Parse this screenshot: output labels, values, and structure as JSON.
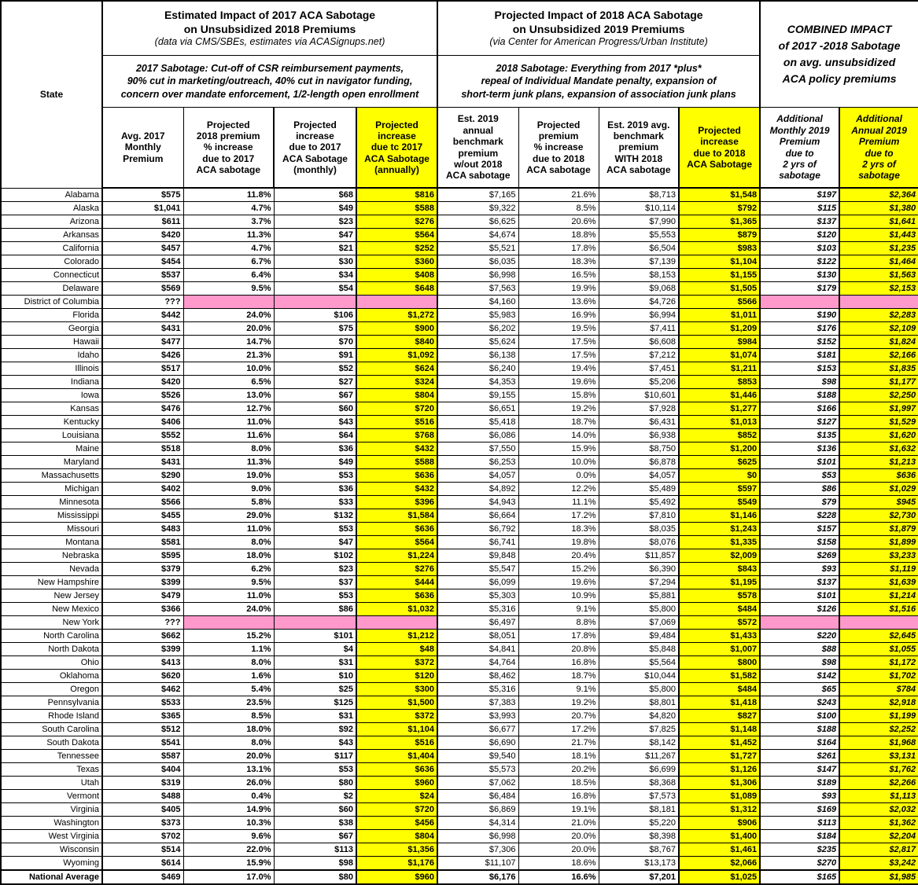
{
  "colors": {
    "highlight_yellow": "#FFFF00",
    "missing_pink": "#FF99CC",
    "text": "#000000"
  },
  "chart_data": {
    "type": "table",
    "header": {
      "state_label": "State",
      "group1": {
        "title": "Estimated Impact of 2017 ACA Sabotage\non Unsubsidized 2018 Premiums",
        "source": "(data via CMS/SBEs, estimates via ACASignups.net)",
        "description": "2017 Sabotage: Cut-off of CSR reimbursement payments,\n90% cut in marketing/outreach, 40% cut in navigator funding,\nconcern over mandate enforcement, 1/2-length open enrollment"
      },
      "group2": {
        "title": "Projected Impact of 2018 ACA Sabotage\non Unsubsidized 2019 Premiums",
        "source": "(via Center for American Progress/Urban Institute)",
        "description": "2018 Sabotage: Everything from 2017 *plus*\nrepeal of Individual Mandate penalty, expansion of\nshort-term junk plans, expansion of association junk plans"
      },
      "group3": {
        "title": "COMBINED IMPACT\nof 2017 -2018 Sabotage\non avg. unsubsidized\nACA policy premiums"
      }
    },
    "columns": [
      {
        "label": "Avg. 2017\nMonthly\nPremium",
        "highlight": false,
        "italic": false
      },
      {
        "label": "Projected\n2018 premium\n% increase\ndue to 2017\nACA sabotage",
        "highlight": false,
        "italic": false
      },
      {
        "label": "Projected\nincrease\ndue to 2017\nACA Sabotage\n(monthly)",
        "highlight": false,
        "italic": false
      },
      {
        "label": "Projected\nincrease\ndue tc 2017\nACA Sabotage\n(annually)",
        "highlight": true,
        "italic": false
      },
      {
        "label": "Est. 2019\nannual\nbenchmark\npremium\nw/out 2018\nACA sabotage",
        "highlight": false,
        "italic": false
      },
      {
        "label": "Projected\npremium\n% increase\ndue to 2018\nACA sabotage",
        "highlight": false,
        "italic": false
      },
      {
        "label": "Est. 2019 avg.\nbenchmark\npremium\nWITH 2018\nACA sabotage",
        "highlight": false,
        "italic": false
      },
      {
        "label": "Projected\nincrease\ndue to 2018\nACA Sabotage",
        "highlight": true,
        "italic": false
      },
      {
        "label": "Additional\nMonthly 2019\nPremium\ndue to\n2 yrs of\nsabotage",
        "highlight": false,
        "italic": true
      },
      {
        "label": "Additional\nAnnual 2019\nPremium\ndue to\n2 yrs of\nsabotage",
        "highlight": true,
        "italic": true
      }
    ],
    "rows": [
      {
        "state": "Alabama",
        "cells": [
          "$575",
          "11.8%",
          "$68",
          "$816",
          "$7,165",
          "21.6%",
          "$8,713",
          "$1,548",
          "$197",
          "$2,364"
        ]
      },
      {
        "state": "Alaska",
        "cells": [
          "$1,041",
          "4.7%",
          "$49",
          "$588",
          "$9,322",
          "8.5%",
          "$10,114",
          "$792",
          "$115",
          "$1,380"
        ]
      },
      {
        "state": "Arizona",
        "cells": [
          "$611",
          "3.7%",
          "$23",
          "$276",
          "$6,625",
          "20.6%",
          "$7,990",
          "$1,365",
          "$137",
          "$1,641"
        ]
      },
      {
        "state": "Arkansas",
        "cells": [
          "$420",
          "11.3%",
          "$47",
          "$564",
          "$4,674",
          "18.8%",
          "$5,553",
          "$879",
          "$120",
          "$1,443"
        ]
      },
      {
        "state": "California",
        "cells": [
          "$457",
          "4.7%",
          "$21",
          "$252",
          "$5,521",
          "17.8%",
          "$6,504",
          "$983",
          "$103",
          "$1,235"
        ]
      },
      {
        "state": "Colorado",
        "cells": [
          "$454",
          "6.7%",
          "$30",
          "$360",
          "$6,035",
          "18.3%",
          "$7,139",
          "$1,104",
          "$122",
          "$1,464"
        ]
      },
      {
        "state": "Connecticut",
        "cells": [
          "$537",
          "6.4%",
          "$34",
          "$408",
          "$6,998",
          "16.5%",
          "$8,153",
          "$1,155",
          "$130",
          "$1,563"
        ]
      },
      {
        "state": "Delaware",
        "cells": [
          "$569",
          "9.5%",
          "$54",
          "$648",
          "$7,563",
          "19.9%",
          "$9,068",
          "$1,505",
          "$179",
          "$2,153"
        ]
      },
      {
        "state": "District of Columbia",
        "cells": [
          "???",
          null,
          null,
          null,
          "$4,160",
          "13.6%",
          "$4,726",
          "$566",
          null,
          null
        ]
      },
      {
        "state": "Florida",
        "cells": [
          "$442",
          "24.0%",
          "$106",
          "$1,272",
          "$5,983",
          "16.9%",
          "$6,994",
          "$1,011",
          "$190",
          "$2,283"
        ]
      },
      {
        "state": "Georgia",
        "cells": [
          "$431",
          "20.0%",
          "$75",
          "$900",
          "$6,202",
          "19.5%",
          "$7,411",
          "$1,209",
          "$176",
          "$2,109"
        ]
      },
      {
        "state": "Hawaii",
        "cells": [
          "$477",
          "14.7%",
          "$70",
          "$840",
          "$5,624",
          "17.5%",
          "$6,608",
          "$984",
          "$152",
          "$1,824"
        ]
      },
      {
        "state": "Idaho",
        "cells": [
          "$426",
          "21.3%",
          "$91",
          "$1,092",
          "$6,138",
          "17.5%",
          "$7,212",
          "$1,074",
          "$181",
          "$2,166"
        ]
      },
      {
        "state": "Illinois",
        "cells": [
          "$517",
          "10.0%",
          "$52",
          "$624",
          "$6,240",
          "19.4%",
          "$7,451",
          "$1,211",
          "$153",
          "$1,835"
        ]
      },
      {
        "state": "Indiana",
        "cells": [
          "$420",
          "6.5%",
          "$27",
          "$324",
          "$4,353",
          "19.6%",
          "$5,206",
          "$853",
          "$98",
          "$1,177"
        ]
      },
      {
        "state": "Iowa",
        "cells": [
          "$526",
          "13.0%",
          "$67",
          "$804",
          "$9,155",
          "15.8%",
          "$10,601",
          "$1,446",
          "$188",
          "$2,250"
        ]
      },
      {
        "state": "Kansas",
        "cells": [
          "$476",
          "12.7%",
          "$60",
          "$720",
          "$6,651",
          "19.2%",
          "$7,928",
          "$1,277",
          "$166",
          "$1,997"
        ]
      },
      {
        "state": "Kentucky",
        "cells": [
          "$406",
          "11.0%",
          "$43",
          "$516",
          "$5,418",
          "18.7%",
          "$6,431",
          "$1,013",
          "$127",
          "$1,529"
        ]
      },
      {
        "state": "Louisiana",
        "cells": [
          "$552",
          "11.6%",
          "$64",
          "$768",
          "$6,086",
          "14.0%",
          "$6,938",
          "$852",
          "$135",
          "$1,620"
        ]
      },
      {
        "state": "Maine",
        "cells": [
          "$518",
          "8.0%",
          "$36",
          "$432",
          "$7,550",
          "15.9%",
          "$8,750",
          "$1,200",
          "$136",
          "$1,632"
        ]
      },
      {
        "state": "Maryland",
        "cells": [
          "$431",
          "11.3%",
          "$49",
          "$588",
          "$6,253",
          "10.0%",
          "$6,878",
          "$625",
          "$101",
          "$1,213"
        ]
      },
      {
        "state": "Massachusetts",
        "cells": [
          "$290",
          "19.0%",
          "$53",
          "$636",
          "$4,057",
          "0.0%",
          "$4,057",
          "$0",
          "$53",
          "$636"
        ]
      },
      {
        "state": "Michigan",
        "cells": [
          "$402",
          "9.0%",
          "$36",
          "$432",
          "$4,892",
          "12.2%",
          "$5,489",
          "$597",
          "$86",
          "$1,029"
        ]
      },
      {
        "state": "Minnesota",
        "cells": [
          "$566",
          "5.8%",
          "$33",
          "$396",
          "$4,943",
          "11.1%",
          "$5,492",
          "$549",
          "$79",
          "$945"
        ]
      },
      {
        "state": "Mississippi",
        "cells": [
          "$455",
          "29.0%",
          "$132",
          "$1,584",
          "$6,664",
          "17.2%",
          "$7,810",
          "$1,146",
          "$228",
          "$2,730"
        ]
      },
      {
        "state": "Missouri",
        "cells": [
          "$483",
          "11.0%",
          "$53",
          "$636",
          "$6,792",
          "18.3%",
          "$8,035",
          "$1,243",
          "$157",
          "$1,879"
        ]
      },
      {
        "state": "Montana",
        "cells": [
          "$581",
          "8.0%",
          "$47",
          "$564",
          "$6,741",
          "19.8%",
          "$8,076",
          "$1,335",
          "$158",
          "$1,899"
        ]
      },
      {
        "state": "Nebraska",
        "cells": [
          "$595",
          "18.0%",
          "$102",
          "$1,224",
          "$9,848",
          "20.4%",
          "$11,857",
          "$2,009",
          "$269",
          "$3,233"
        ]
      },
      {
        "state": "Nevada",
        "cells": [
          "$379",
          "6.2%",
          "$23",
          "$276",
          "$5,547",
          "15.2%",
          "$6,390",
          "$843",
          "$93",
          "$1,119"
        ]
      },
      {
        "state": "New Hampshire",
        "cells": [
          "$399",
          "9.5%",
          "$37",
          "$444",
          "$6,099",
          "19.6%",
          "$7,294",
          "$1,195",
          "$137",
          "$1,639"
        ]
      },
      {
        "state": "New Jersey",
        "cells": [
          "$479",
          "11.0%",
          "$53",
          "$636",
          "$5,303",
          "10.9%",
          "$5,881",
          "$578",
          "$101",
          "$1,214"
        ]
      },
      {
        "state": "New Mexico",
        "cells": [
          "$366",
          "24.0%",
          "$86",
          "$1,032",
          "$5,316",
          "9.1%",
          "$5,800",
          "$484",
          "$126",
          "$1,516"
        ]
      },
      {
        "state": "New York",
        "cells": [
          "???",
          null,
          null,
          null,
          "$6,497",
          "8.8%",
          "$7,069",
          "$572",
          null,
          null
        ]
      },
      {
        "state": "North Carolina",
        "cells": [
          "$662",
          "15.2%",
          "$101",
          "$1,212",
          "$8,051",
          "17.8%",
          "$9,484",
          "$1,433",
          "$220",
          "$2,645"
        ]
      },
      {
        "state": "North Dakota",
        "cells": [
          "$399",
          "1.1%",
          "$4",
          "$48",
          "$4,841",
          "20.8%",
          "$5,848",
          "$1,007",
          "$88",
          "$1,055"
        ]
      },
      {
        "state": "Ohio",
        "cells": [
          "$413",
          "8.0%",
          "$31",
          "$372",
          "$4,764",
          "16.8%",
          "$5,564",
          "$800",
          "$98",
          "$1,172"
        ]
      },
      {
        "state": "Oklahoma",
        "cells": [
          "$620",
          "1.6%",
          "$10",
          "$120",
          "$8,462",
          "18.7%",
          "$10,044",
          "$1,582",
          "$142",
          "$1,702"
        ]
      },
      {
        "state": "Oregon",
        "cells": [
          "$462",
          "5.4%",
          "$25",
          "$300",
          "$5,316",
          "9.1%",
          "$5,800",
          "$484",
          "$65",
          "$784"
        ]
      },
      {
        "state": "Pennsylvania",
        "cells": [
          "$533",
          "23.5%",
          "$125",
          "$1,500",
          "$7,383",
          "19.2%",
          "$8,801",
          "$1,418",
          "$243",
          "$2,918"
        ]
      },
      {
        "state": "Rhode Island",
        "cells": [
          "$365",
          "8.5%",
          "$31",
          "$372",
          "$3,993",
          "20.7%",
          "$4,820",
          "$827",
          "$100",
          "$1,199"
        ]
      },
      {
        "state": "South Carolina",
        "cells": [
          "$512",
          "18.0%",
          "$92",
          "$1,104",
          "$6,677",
          "17.2%",
          "$7,825",
          "$1,148",
          "$188",
          "$2,252"
        ]
      },
      {
        "state": "South Dakota",
        "cells": [
          "$541",
          "8.0%",
          "$43",
          "$516",
          "$6,690",
          "21.7%",
          "$8,142",
          "$1,452",
          "$164",
          "$1,968"
        ]
      },
      {
        "state": "Tennessee",
        "cells": [
          "$587",
          "20.0%",
          "$117",
          "$1,404",
          "$9,540",
          "18.1%",
          "$11,267",
          "$1,727",
          "$261",
          "$3,131"
        ]
      },
      {
        "state": "Texas",
        "cells": [
          "$404",
          "13.1%",
          "$53",
          "$636",
          "$5,573",
          "20.2%",
          "$6,699",
          "$1,126",
          "$147",
          "$1,762"
        ]
      },
      {
        "state": "Utah",
        "cells": [
          "$319",
          "26.0%",
          "$80",
          "$960",
          "$7,062",
          "18.5%",
          "$8,368",
          "$1,306",
          "$189",
          "$2,266"
        ]
      },
      {
        "state": "Vermont",
        "cells": [
          "$488",
          "0.4%",
          "$2",
          "$24",
          "$6,484",
          "16.8%",
          "$7,573",
          "$1,089",
          "$93",
          "$1,113"
        ]
      },
      {
        "state": "Virginia",
        "cells": [
          "$405",
          "14.9%",
          "$60",
          "$720",
          "$6,869",
          "19.1%",
          "$8,181",
          "$1,312",
          "$169",
          "$2,032"
        ]
      },
      {
        "state": "Washington",
        "cells": [
          "$373",
          "10.3%",
          "$38",
          "$456",
          "$4,314",
          "21.0%",
          "$5,220",
          "$906",
          "$113",
          "$1,362"
        ]
      },
      {
        "state": "West Virginia",
        "cells": [
          "$702",
          "9.6%",
          "$67",
          "$804",
          "$6,998",
          "20.0%",
          "$8,398",
          "$1,400",
          "$184",
          "$2,204"
        ]
      },
      {
        "state": "Wisconsin",
        "cells": [
          "$514",
          "22.0%",
          "$113",
          "$1,356",
          "$7,306",
          "20.0%",
          "$8,767",
          "$1,461",
          "$235",
          "$2,817"
        ]
      },
      {
        "state": "Wyoming",
        "cells": [
          "$614",
          "15.9%",
          "$98",
          "$1,176",
          "$11,107",
          "18.6%",
          "$13,173",
          "$2,066",
          "$270",
          "$3,242"
        ]
      }
    ],
    "footer": {
      "state": "National Average",
      "cells": [
        "$469",
        "17.0%",
        "$80",
        "$960",
        "$6,176",
        "16.6%",
        "$7,201",
        "$1,025",
        "$165",
        "$1,985"
      ]
    }
  }
}
